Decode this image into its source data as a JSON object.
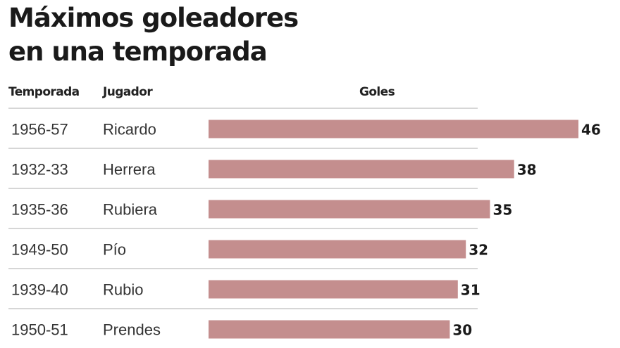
{
  "chart_data": {
    "type": "bar",
    "title": "Máximos goleadores en una temporada",
    "title_lines": [
      "Máximos goleadores",
      "en una temporada"
    ],
    "columns": {
      "season": "Temporada",
      "player": "Jugador",
      "goals": "Goles"
    },
    "rows": [
      {
        "season": "1956-57",
        "player": "Ricardo",
        "goals": 46
      },
      {
        "season": "1932-33",
        "player": "Herrera",
        "goals": 38
      },
      {
        "season": "1935-36",
        "player": "Rubiera",
        "goals": 35
      },
      {
        "season": "1949-50",
        "player": "Pío",
        "goals": 32
      },
      {
        "season": "1939-40",
        "player": "Rubio",
        "goals": 31
      },
      {
        "season": "1950-51",
        "player": "Prendes",
        "goals": 30
      }
    ],
    "xlim": [
      0,
      46
    ],
    "bar_color": "#c48e8e",
    "separator_color": "#c8c8c8"
  }
}
